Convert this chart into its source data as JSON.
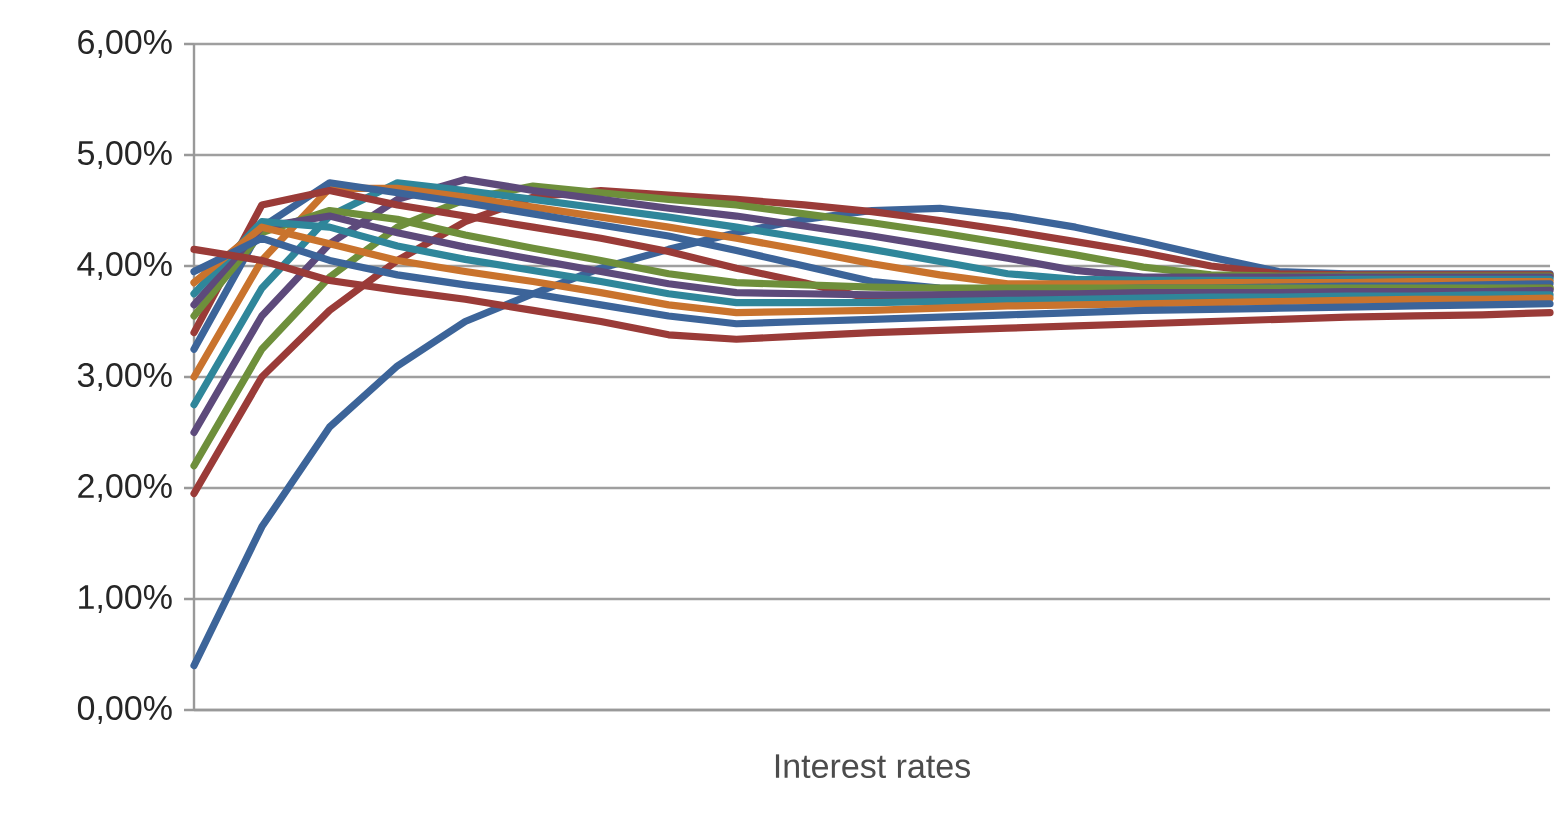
{
  "chart_data": {
    "type": "line",
    "xlabel": "Interest rates",
    "categories": [
      null,
      null,
      null,
      null,
      null,
      null,
      null,
      null,
      null,
      null,
      null,
      null,
      null,
      null,
      null,
      null,
      null,
      null,
      null,
      null,
      null
    ],
    "ylim": [
      0,
      6
    ],
    "yticks": [
      {
        "value": 0,
        "label": "0,00%"
      },
      {
        "value": 1,
        "label": "1,00%"
      },
      {
        "value": 2,
        "label": "2,00%"
      },
      {
        "value": 3,
        "label": "3,00%"
      },
      {
        "value": 4,
        "label": "4,00%"
      },
      {
        "value": 5,
        "label": "5,00%"
      },
      {
        "value": 6,
        "label": "6,00%"
      }
    ],
    "grid": "y",
    "tick_labels": "y",
    "line_style": "solid",
    "series": [
      {
        "color": "#3c6499",
        "values": [
          0.4,
          1.65,
          2.55,
          3.1,
          3.5,
          3.75,
          3.98,
          4.15,
          4.3,
          4.42,
          4.5,
          4.52,
          4.45,
          4.35,
          4.22,
          4.08,
          3.95,
          3.93,
          3.93,
          3.93,
          3.93
        ]
      },
      {
        "color": "#9a3b38",
        "values": [
          1.95,
          3.0,
          3.6,
          4.05,
          4.4,
          4.62,
          4.68,
          4.64,
          4.6,
          4.55,
          4.49,
          4.41,
          4.32,
          4.22,
          4.12,
          4.0,
          3.93,
          3.92,
          3.92,
          3.92,
          3.92
        ]
      },
      {
        "color": "#6e8f3b",
        "values": [
          2.2,
          3.25,
          3.9,
          4.35,
          4.6,
          4.72,
          4.66,
          4.6,
          4.55,
          4.47,
          4.39,
          4.3,
          4.2,
          4.1,
          3.99,
          3.92,
          3.91,
          3.91,
          3.91,
          3.91,
          3.91
        ]
      },
      {
        "color": "#5d4a7b",
        "values": [
          2.5,
          3.55,
          4.2,
          4.6,
          4.78,
          4.68,
          4.6,
          4.52,
          4.45,
          4.36,
          4.27,
          4.17,
          4.07,
          3.96,
          3.9,
          3.9,
          3.9,
          3.9,
          3.9,
          3.9,
          3.9
        ]
      },
      {
        "color": "#2f869a",
        "values": [
          2.75,
          3.8,
          4.45,
          4.75,
          4.68,
          4.6,
          4.52,
          4.44,
          4.35,
          4.25,
          4.15,
          4.04,
          3.93,
          3.88,
          3.87,
          3.87,
          3.87,
          3.88,
          3.88,
          3.88,
          3.88
        ]
      },
      {
        "color": "#c9732d",
        "values": [
          3.0,
          4.05,
          4.7,
          4.7,
          4.62,
          4.53,
          4.44,
          4.35,
          4.25,
          4.14,
          4.02,
          3.92,
          3.84,
          3.84,
          3.84,
          3.85,
          3.85,
          3.85,
          3.86,
          3.86,
          3.86
        ]
      },
      {
        "color": "#3c6499",
        "values": [
          3.25,
          4.35,
          4.75,
          4.66,
          4.57,
          4.47,
          4.37,
          4.27,
          4.14,
          4.0,
          3.86,
          3.8,
          3.79,
          3.79,
          3.8,
          3.8,
          3.81,
          3.82,
          3.82,
          3.83,
          3.84
        ]
      },
      {
        "color": "#9a3b38",
        "values": [
          3.4,
          4.55,
          4.68,
          4.55,
          4.45,
          4.35,
          4.25,
          4.13,
          3.98,
          3.85,
          3.7,
          3.71,
          3.72,
          3.73,
          3.74,
          3.75,
          3.76,
          3.77,
          3.78,
          3.79,
          3.8
        ]
      },
      {
        "color": "#6e8f3b",
        "values": [
          3.55,
          4.3,
          4.5,
          4.42,
          4.28,
          4.16,
          4.05,
          3.93,
          3.85,
          3.83,
          3.81,
          3.8,
          3.8,
          3.8,
          3.8,
          3.8,
          3.8,
          3.8,
          3.8,
          3.8,
          3.8
        ]
      },
      {
        "color": "#5d4a7b",
        "values": [
          3.65,
          4.35,
          4.45,
          4.3,
          4.17,
          4.06,
          3.95,
          3.84,
          3.76,
          3.75,
          3.74,
          3.74,
          3.75,
          3.75,
          3.76,
          3.76,
          3.76,
          3.77,
          3.77,
          3.77,
          3.78
        ]
      },
      {
        "color": "#2f869a",
        "values": [
          3.75,
          4.4,
          4.35,
          4.18,
          4.06,
          3.96,
          3.86,
          3.75,
          3.67,
          3.67,
          3.67,
          3.68,
          3.69,
          3.7,
          3.71,
          3.72,
          3.72,
          3.73,
          3.73,
          3.74,
          3.74
        ]
      },
      {
        "color": "#c9732d",
        "values": [
          3.85,
          4.35,
          4.2,
          4.05,
          3.95,
          3.86,
          3.76,
          3.65,
          3.58,
          3.59,
          3.6,
          3.62,
          3.64,
          3.65,
          3.66,
          3.67,
          3.68,
          3.69,
          3.7,
          3.7,
          3.71
        ]
      },
      {
        "color": "#3c6499",
        "values": [
          3.95,
          4.25,
          4.05,
          3.92,
          3.83,
          3.75,
          3.65,
          3.55,
          3.48,
          3.5,
          3.52,
          3.54,
          3.56,
          3.58,
          3.6,
          3.61,
          3.62,
          3.63,
          3.64,
          3.65,
          3.66
        ]
      },
      {
        "color": "#9a3b38",
        "values": [
          4.15,
          4.05,
          3.87,
          3.78,
          3.7,
          3.6,
          3.5,
          3.38,
          3.34,
          3.37,
          3.4,
          3.42,
          3.44,
          3.46,
          3.48,
          3.5,
          3.52,
          3.54,
          3.55,
          3.56,
          3.58
        ]
      }
    ]
  }
}
